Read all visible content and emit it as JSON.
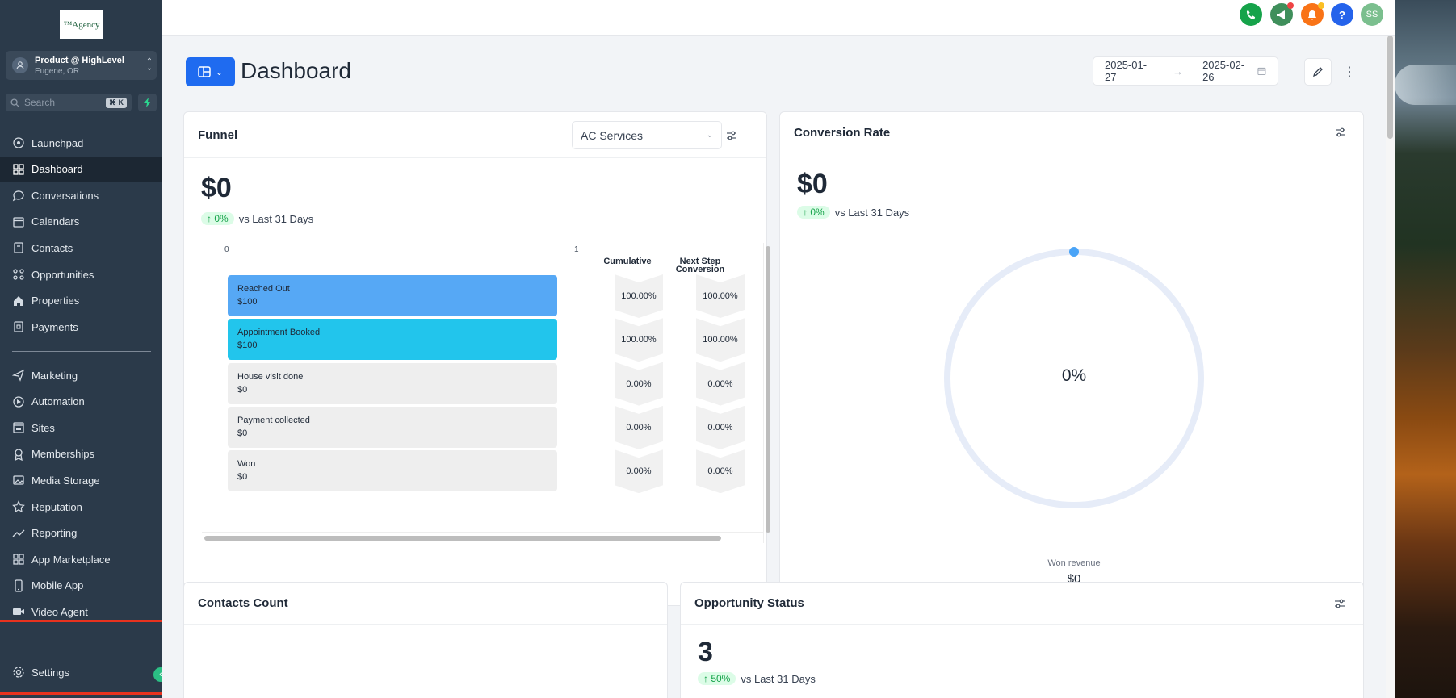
{
  "sidebar": {
    "logo_text": "™Agency",
    "account": {
      "name": "Product @ HighLevel",
      "location": "Eugene, OR"
    },
    "search": {
      "placeholder": "Search",
      "shortcut": "⌘ K"
    },
    "items": [
      {
        "label": "Launchpad",
        "icon": "launchpad-icon"
      },
      {
        "label": "Dashboard",
        "icon": "dashboard-icon",
        "active": true
      },
      {
        "label": "Conversations",
        "icon": "chat-icon"
      },
      {
        "label": "Calendars",
        "icon": "calendar-icon"
      },
      {
        "label": "Contacts",
        "icon": "contacts-icon"
      },
      {
        "label": "Opportunities",
        "icon": "opportunities-icon"
      },
      {
        "label": "Properties",
        "icon": "home-icon"
      },
      {
        "label": "Payments",
        "icon": "payments-icon"
      }
    ],
    "items2": [
      {
        "label": "Marketing",
        "icon": "send-icon"
      },
      {
        "label": "Automation",
        "icon": "automation-icon"
      },
      {
        "label": "Sites",
        "icon": "sites-icon"
      },
      {
        "label": "Memberships",
        "icon": "badge-icon"
      },
      {
        "label": "Media Storage",
        "icon": "image-icon"
      },
      {
        "label": "Reputation",
        "icon": "star-icon"
      },
      {
        "label": "Reporting",
        "icon": "trend-icon"
      },
      {
        "label": "App Marketplace",
        "icon": "grid-icon"
      },
      {
        "label": "Mobile App",
        "icon": "mobile-icon"
      },
      {
        "label": "Video Agent",
        "icon": "video-icon"
      }
    ],
    "settings_label": "Settings"
  },
  "topbar": {
    "avatar_initials": "SS",
    "help": "?"
  },
  "page": {
    "title": "Dashboard",
    "date_start": "2025-01-27",
    "date_end": "2025-02-26"
  },
  "funnel": {
    "title": "Funnel",
    "pipeline": "AC Services",
    "value": "$0",
    "change": "↑ 0%",
    "vs": "vs Last 31 Days",
    "axis_min": "0",
    "axis_max": "1",
    "col_cumulative": "Cumulative",
    "col_next_1": "Next Step",
    "col_next_2": "Conversion",
    "stages": [
      {
        "name": "Reached Out",
        "amount": "$100",
        "cumulative": "100.00%",
        "next": "100.00%",
        "color": "#56a8f5"
      },
      {
        "name": "Appointment Booked",
        "amount": "$100",
        "cumulative": "100.00%",
        "next": "100.00%",
        "color": "#22c5ec"
      },
      {
        "name": "House visit done",
        "amount": "$0",
        "cumulative": "0.00%",
        "next": "0.00%",
        "color": "#eeeeee"
      },
      {
        "name": "Payment collected",
        "amount": "$0",
        "cumulative": "0.00%",
        "next": "0.00%",
        "color": "#eeeeee"
      },
      {
        "name": "Won",
        "amount": "$0",
        "cumulative": "0.00%",
        "next": "0.00%",
        "color": "#eeeeee"
      }
    ]
  },
  "conversion": {
    "title": "Conversion Rate",
    "value": "$0",
    "change": "↑ 0%",
    "vs": "vs Last 31 Days",
    "rate": "0%",
    "won_label": "Won revenue",
    "won_value": "$0"
  },
  "contacts_count": {
    "title": "Contacts Count"
  },
  "opportunity_status": {
    "title": "Opportunity Status",
    "value": "3",
    "change": "↑ 50%",
    "vs": "vs Last 31 Days"
  }
}
